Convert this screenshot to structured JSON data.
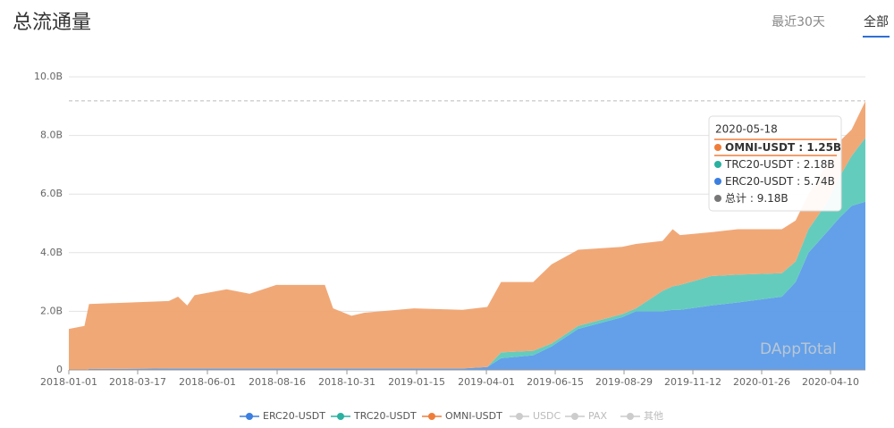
{
  "header": {
    "title": "总流通量",
    "tabs": [
      "最近30天",
      "全部"
    ],
    "active_tab": 1
  },
  "chart_data": {
    "type": "stacked-area",
    "x": [
      "2018-01-01",
      "2018-01-18",
      "2018-01-23",
      "2018-04-20",
      "2018-04-30",
      "2018-05-10",
      "2018-05-18",
      "2018-06-22",
      "2018-07-17",
      "2018-08-15",
      "2018-10-07",
      "2018-10-16",
      "2018-11-05",
      "2018-11-19",
      "2019-01-12",
      "2019-03-06",
      "2019-04-02",
      "2019-04-17",
      "2019-05-22",
      "2019-06-11",
      "2019-07-10",
      "2019-08-27",
      "2019-09-11",
      "2019-10-10",
      "2019-10-21",
      "2019-10-29",
      "2019-12-02",
      "2019-12-31",
      "2020-02-17",
      "2020-03-03",
      "2020-03-17",
      "2020-04-06",
      "2020-04-20",
      "2020-05-03",
      "2020-05-18"
    ],
    "series": [
      {
        "name": "ERC20-USDT",
        "color": "#3b7fe0",
        "fill": "#5b9be8",
        "values": [
          0,
          0,
          0.03,
          0.05,
          0.05,
          0.05,
          0.05,
          0.05,
          0.05,
          0.05,
          0.05,
          0.05,
          0.05,
          0.05,
          0.05,
          0.05,
          0.1,
          0.4,
          0.5,
          0.8,
          1.4,
          1.8,
          2.0,
          2.0,
          2.05,
          2.05,
          2.2,
          2.3,
          2.5,
          3.0,
          4.0,
          4.7,
          5.2,
          5.6,
          5.74
        ]
      },
      {
        "name": "TRC20-USDT",
        "color": "#2ab1a0",
        "fill": "#5cc9b9",
        "values": [
          0,
          0,
          0,
          0,
          0,
          0,
          0,
          0,
          0,
          0,
          0,
          0,
          0,
          0,
          0,
          0,
          0,
          0.2,
          0.15,
          0.1,
          0.1,
          0.1,
          0.1,
          0.7,
          0.8,
          0.85,
          1.0,
          0.95,
          0.8,
          0.7,
          0.8,
          1.0,
          1.4,
          1.7,
          2.18
        ]
      },
      {
        "name": "OMNI-USDT",
        "color": "#ef7d3a",
        "fill": "#f0a370",
        "values": [
          1.4,
          1.5,
          2.22,
          2.3,
          2.45,
          2.15,
          2.5,
          2.7,
          2.55,
          2.85,
          2.85,
          2.05,
          1.8,
          1.9,
          2.05,
          2.0,
          2.05,
          2.4,
          2.35,
          2.7,
          2.6,
          2.3,
          2.2,
          1.7,
          1.95,
          1.7,
          1.5,
          1.55,
          1.5,
          1.4,
          1.2,
          1.3,
          1.2,
          0.9,
          1.25
        ]
      }
    ],
    "legend_inactive": [
      "USDC",
      "PAX",
      "其他"
    ],
    "xlim": [
      "2018-01-01",
      "2020-05-18"
    ],
    "xticks": [
      "2018-01-01",
      "2018-03-17",
      "2018-06-01",
      "2018-08-16",
      "2018-10-31",
      "2019-01-15",
      "2019-04-01",
      "2019-06-15",
      "2019-08-29",
      "2019-11-12",
      "2020-01-26",
      "2020-04-10"
    ],
    "ylim": [
      0,
      10
    ],
    "yticks": [
      0,
      {
        "value": 2,
        "label": "2.0B"
      },
      {
        "value": 4,
        "label": "4.0B"
      },
      {
        "value": 6,
        "label": "6.0B"
      },
      {
        "value": 8,
        "label": "8.0B"
      },
      {
        "value": 10,
        "label": "10.0B"
      }
    ],
    "grid": true,
    "tooltip": {
      "date": "2020-05-18",
      "separator": " : ",
      "items": [
        {
          "name": "OMNI-USDT",
          "color": "#ef7d3a",
          "value": 1.25,
          "label": "1.25B"
        },
        {
          "name": "TRC20-USDT",
          "color": "#2ab1a0",
          "value": 2.18,
          "label": "2.18B"
        },
        {
          "name": "ERC20-USDT",
          "color": "#3b7fe0",
          "value": 5.74,
          "label": "5.74B"
        },
        {
          "name": "总计",
          "color": "#777777",
          "value": 9.18,
          "label": "9.18B"
        }
      ]
    },
    "watermark": "DAppTotal"
  }
}
